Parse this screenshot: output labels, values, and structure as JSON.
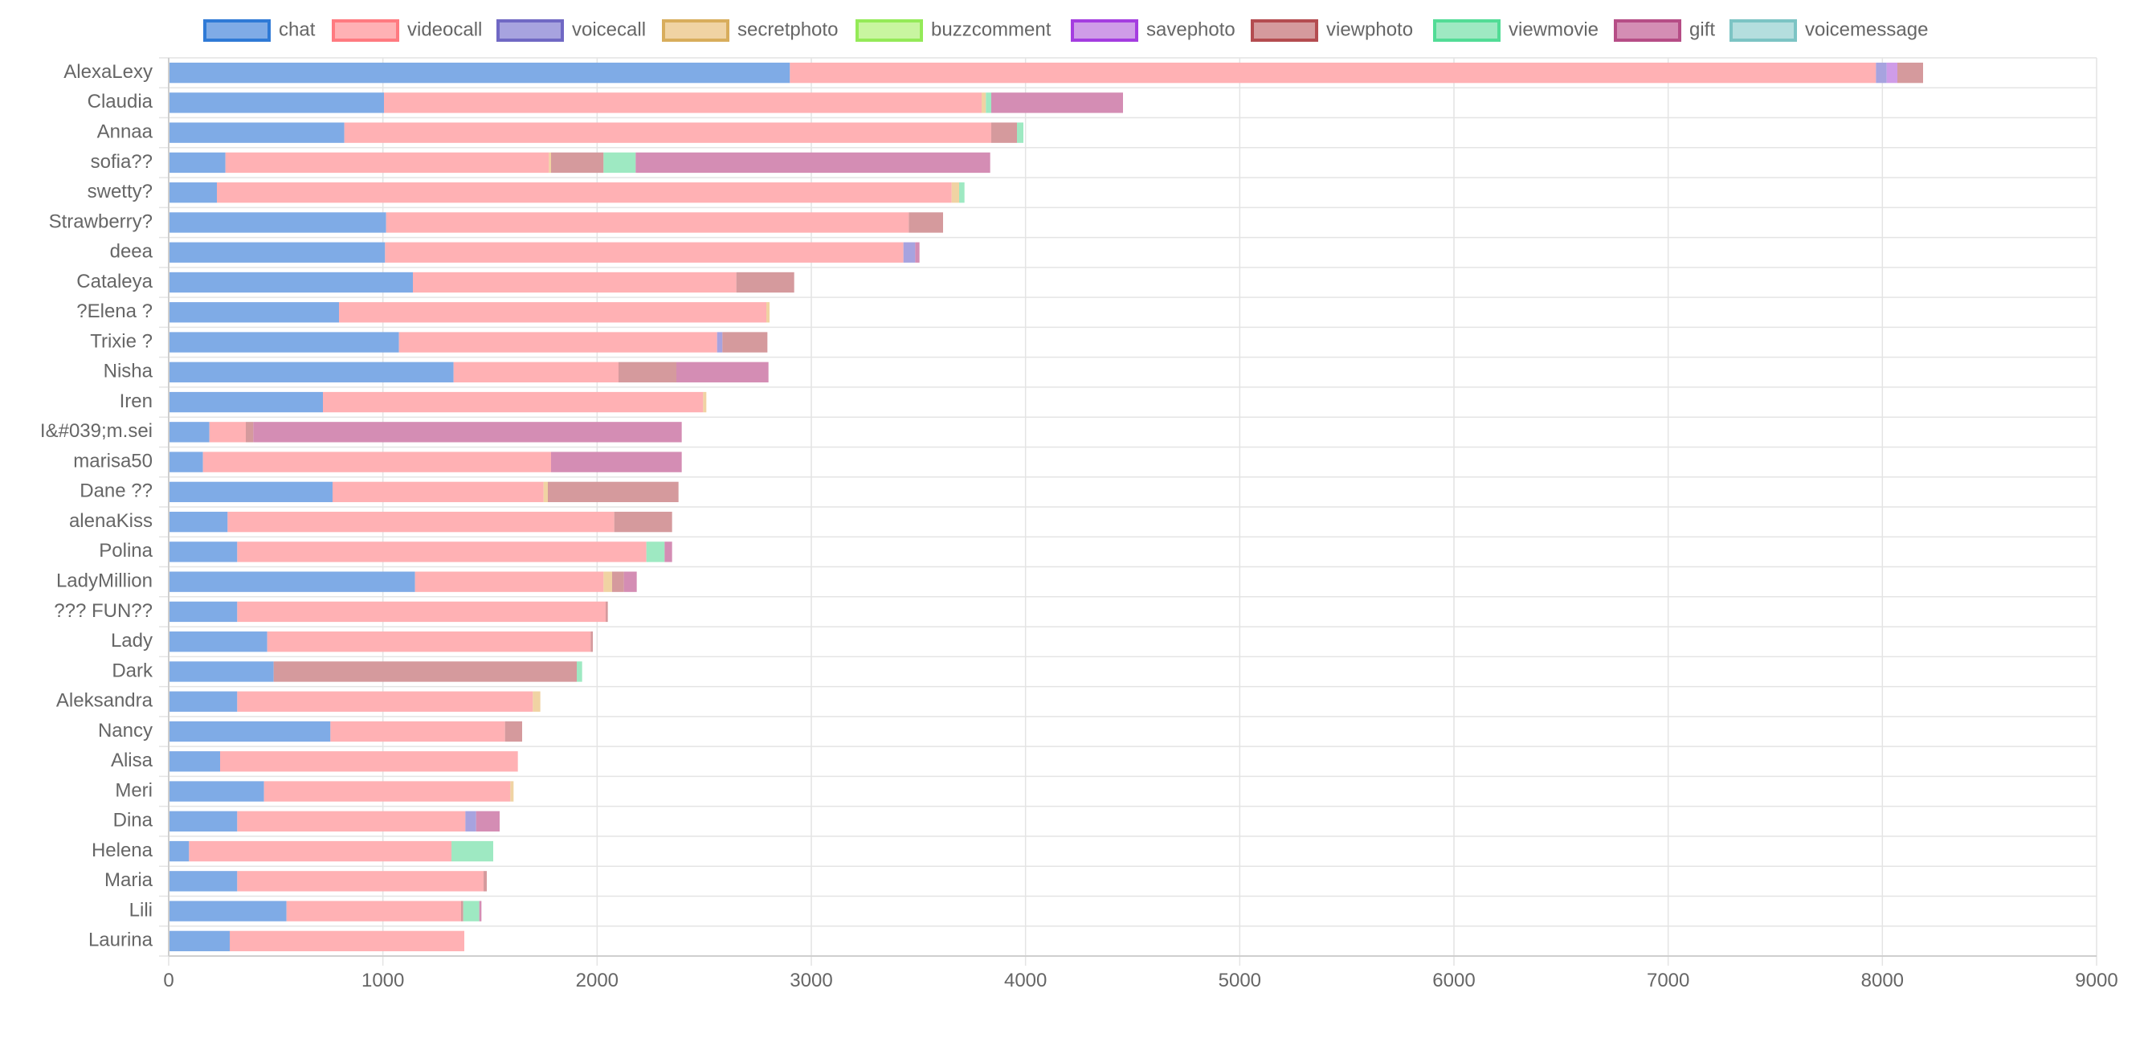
{
  "chart_data": {
    "type": "bar",
    "orientation": "horizontal",
    "stacked": true,
    "legend_position": "top",
    "grid": true,
    "xlim": [
      0,
      9000
    ],
    "x_ticks": [
      "0",
      "1000",
      "2000",
      "3000",
      "4000",
      "5000",
      "6000",
      "7000",
      "8000",
      "9000"
    ],
    "title": "",
    "xlabel": "",
    "ylabel": "",
    "categories": [
      "AlexaLexy",
      "Claudia",
      "Annaa",
      "sofia??",
      "swetty?",
      "Strawberry?",
      "deea",
      "Cataleya",
      "?Elena ?",
      "Trixie ?",
      "Nisha",
      "Iren",
      "I&#039;m.sei",
      "marisa50",
      "Dane ??",
      "alenaKiss",
      "Polina",
      "LadyMillion",
      "??? FUN??",
      "Lady",
      "Dark",
      "Aleksandra",
      "Nancy",
      "Alisa",
      "Meri",
      "Dina",
      "Helena",
      "Maria",
      "Lili",
      "Laurina"
    ],
    "series": [
      {
        "name": "chat",
        "color": "#7fabe6",
        "border": "#2f7ad6",
        "values": [
          2900,
          1005,
          820,
          265,
          225,
          1015,
          1010,
          1140,
          795,
          1075,
          1330,
          720,
          190,
          160,
          765,
          275,
          320,
          1150,
          320,
          460,
          490,
          320,
          755,
          240,
          445,
          320,
          95,
          320,
          550,
          285
        ]
      },
      {
        "name": "videocall",
        "color": "#ffb1b4",
        "border": "#ff7a80",
        "values": [
          5070,
          2790,
          3020,
          1510,
          3430,
          2440,
          2420,
          1510,
          1995,
          1485,
          770,
          1775,
          170,
          1625,
          985,
          1805,
          1910,
          880,
          1720,
          1510,
          0,
          1380,
          815,
          1390,
          1150,
          1065,
          1225,
          1150,
          815,
          1095
        ]
      },
      {
        "name": "voicecall",
        "color": "#a7a3df",
        "border": "#7068c4",
        "values": [
          50,
          0,
          0,
          0,
          0,
          0,
          55,
          0,
          0,
          25,
          0,
          0,
          0,
          0,
          0,
          0,
          0,
          0,
          0,
          0,
          0,
          0,
          0,
          0,
          0,
          50,
          0,
          0,
          0,
          0
        ]
      },
      {
        "name": "secretphoto",
        "color": "#f0d3a3",
        "border": "#d8ad5c",
        "values": [
          0,
          20,
          0,
          10,
          35,
          0,
          0,
          0,
          15,
          0,
          0,
          15,
          0,
          0,
          20,
          0,
          0,
          40,
          0,
          0,
          0,
          35,
          0,
          0,
          15,
          0,
          0,
          0,
          0,
          0
        ]
      },
      {
        "name": "buzzcomment",
        "color": "#c8f5a0",
        "border": "#94ea58",
        "values": [
          0,
          0,
          0,
          0,
          0,
          0,
          0,
          0,
          0,
          0,
          0,
          0,
          0,
          0,
          0,
          0,
          0,
          0,
          0,
          0,
          0,
          0,
          0,
          0,
          0,
          0,
          0,
          0,
          0,
          0
        ]
      },
      {
        "name": "savephoto",
        "color": "#cf9ce8",
        "border": "#a43de0",
        "values": [
          50,
          0,
          0,
          0,
          0,
          0,
          0,
          0,
          0,
          0,
          0,
          0,
          0,
          0,
          0,
          0,
          0,
          0,
          0,
          0,
          0,
          0,
          0,
          0,
          0,
          0,
          0,
          0,
          0,
          0
        ]
      },
      {
        "name": "viewphoto",
        "color": "#d59a9d",
        "border": "#b44c50",
        "values": [
          120,
          0,
          120,
          245,
          0,
          160,
          0,
          270,
          0,
          210,
          270,
          0,
          35,
          0,
          610,
          270,
          0,
          55,
          10,
          10,
          1415,
          0,
          80,
          0,
          0,
          0,
          0,
          15,
          10,
          0
        ]
      },
      {
        "name": "viewmovie",
        "color": "#9ee9c2",
        "border": "#52dc96",
        "values": [
          0,
          25,
          30,
          150,
          25,
          0,
          0,
          0,
          0,
          0,
          0,
          0,
          0,
          0,
          0,
          0,
          85,
          0,
          0,
          0,
          25,
          0,
          0,
          0,
          0,
          0,
          195,
          0,
          75,
          0
        ]
      },
      {
        "name": "gift",
        "color": "#d48db4",
        "border": "#b64d86",
        "values": [
          0,
          615,
          0,
          1655,
          0,
          0,
          20,
          0,
          0,
          0,
          430,
          0,
          2000,
          610,
          0,
          0,
          35,
          60,
          0,
          0,
          0,
          0,
          0,
          0,
          0,
          110,
          0,
          0,
          10,
          0
        ]
      },
      {
        "name": "voicemessage",
        "color": "#b4dede",
        "border": "#7cc4c4",
        "values": [
          0,
          0,
          0,
          0,
          0,
          0,
          0,
          0,
          0,
          0,
          0,
          0,
          0,
          0,
          0,
          0,
          0,
          0,
          0,
          0,
          0,
          0,
          0,
          0,
          0,
          0,
          0,
          0,
          0,
          0
        ]
      }
    ]
  }
}
